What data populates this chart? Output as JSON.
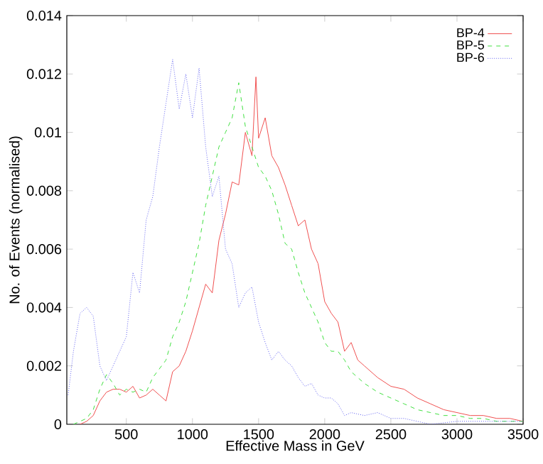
{
  "chart_data": {
    "type": "line",
    "xlabel": "Effective Mass in GeV",
    "ylabel": "No. of Events (normalised)",
    "xlim": [
      50,
      3500
    ],
    "xticks": [
      500,
      1000,
      1500,
      2000,
      2500,
      3000,
      3500
    ],
    "ylim": [
      0,
      0.014
    ],
    "yticks": [
      0,
      0.002,
      0.004,
      0.006,
      0.008,
      0.01,
      0.012,
      0.014
    ],
    "legend": "top right",
    "grid": false,
    "marker": "none",
    "series": [
      {
        "name": "BP-4",
        "color": "#f05050",
        "line_style": "solid",
        "x": [
          150,
          200,
          250,
          300,
          350,
          400,
          450,
          500,
          550,
          600,
          650,
          700,
          750,
          800,
          850,
          900,
          950,
          1000,
          1050,
          1100,
          1150,
          1200,
          1250,
          1300,
          1350,
          1400,
          1450,
          1480,
          1500,
          1550,
          1600,
          1650,
          1700,
          1750,
          1800,
          1850,
          1900,
          1950,
          2000,
          2050,
          2100,
          2150,
          2200,
          2250,
          2300,
          2400,
          2500,
          2600,
          2700,
          2800,
          2900,
          3000,
          3100,
          3200,
          3300,
          3400,
          3500
        ],
        "values": [
          0,
          0.0001,
          0.0003,
          0.0008,
          0.0011,
          0.0012,
          0.0012,
          0.0011,
          0.0013,
          0.0009,
          0.001,
          0.0012,
          0.001,
          0.0008,
          0.0018,
          0.002,
          0.0025,
          0.0032,
          0.004,
          0.0048,
          0.0045,
          0.0063,
          0.0072,
          0.0083,
          0.0082,
          0.01,
          0.0092,
          0.0119,
          0.0098,
          0.0105,
          0.0092,
          0.0088,
          0.0082,
          0.0075,
          0.0068,
          0.007,
          0.006,
          0.0055,
          0.0042,
          0.0038,
          0.0035,
          0.0025,
          0.0028,
          0.0022,
          0.002,
          0.0016,
          0.0013,
          0.0012,
          0.0009,
          0.0007,
          0.0005,
          0.0004,
          0.0003,
          0.0003,
          0.0002,
          0.0002,
          0.0001
        ]
      },
      {
        "name": "BP-5",
        "color": "#40e040",
        "line_style": "dashed",
        "x": [
          100,
          200,
          250,
          300,
          350,
          400,
          450,
          500,
          550,
          600,
          650,
          700,
          750,
          800,
          850,
          900,
          950,
          1000,
          1050,
          1100,
          1150,
          1200,
          1250,
          1300,
          1350,
          1400,
          1450,
          1500,
          1550,
          1600,
          1650,
          1700,
          1750,
          1800,
          1850,
          1900,
          1950,
          2000,
          2050,
          2100,
          2150,
          2200,
          2300,
          2400,
          2500,
          2600,
          2700,
          2800,
          2900,
          3000,
          3100,
          3200,
          3300,
          3400,
          3500
        ],
        "values": [
          0,
          0.0002,
          0.0005,
          0.0012,
          0.0017,
          0.0014,
          0.001,
          0.0012,
          0.0011,
          0.0012,
          0.0011,
          0.0016,
          0.0019,
          0.0022,
          0.003,
          0.0035,
          0.0042,
          0.0052,
          0.0062,
          0.0075,
          0.0085,
          0.0095,
          0.01,
          0.0105,
          0.0117,
          0.0102,
          0.0095,
          0.0088,
          0.0085,
          0.008,
          0.0072,
          0.0062,
          0.006,
          0.0052,
          0.0045,
          0.004,
          0.0035,
          0.0028,
          0.0025,
          0.0025,
          0.0022,
          0.0018,
          0.0014,
          0.0011,
          0.0009,
          0.0007,
          0.0005,
          0.0004,
          0.0003,
          0.0003,
          0.0002,
          0.0002,
          0.0001,
          0.0001,
          0.0001
        ]
      },
      {
        "name": "BP-6",
        "color": "#6060f0",
        "line_style": "dotted",
        "x": [
          60,
          100,
          150,
          200,
          250,
          300,
          350,
          400,
          450,
          500,
          550,
          600,
          650,
          700,
          750,
          800,
          850,
          900,
          950,
          1000,
          1050,
          1100,
          1150,
          1200,
          1250,
          1300,
          1350,
          1400,
          1450,
          1500,
          1550,
          1600,
          1650,
          1700,
          1750,
          1800,
          1850,
          1900,
          1950,
          2000,
          2050,
          2100,
          2150,
          2200,
          2300,
          2400,
          2500,
          2600,
          2700,
          2800,
          3000,
          3500
        ],
        "values": [
          0.001,
          0.0025,
          0.0038,
          0.004,
          0.0037,
          0.002,
          0.0015,
          0.002,
          0.0025,
          0.003,
          0.0052,
          0.0045,
          0.007,
          0.0078,
          0.0095,
          0.011,
          0.0125,
          0.0108,
          0.012,
          0.0105,
          0.0122,
          0.0095,
          0.0078,
          0.0085,
          0.006,
          0.0055,
          0.004,
          0.0045,
          0.0047,
          0.0035,
          0.0028,
          0.0022,
          0.0025,
          0.0022,
          0.002,
          0.0016,
          0.0013,
          0.0014,
          0.001,
          0.0009,
          0.0009,
          0.0007,
          0.0003,
          0.0004,
          0.0003,
          0.0004,
          0.0002,
          0.0002,
          0.0001,
          0,
          0.0001,
          0.0001
        ]
      }
    ]
  }
}
